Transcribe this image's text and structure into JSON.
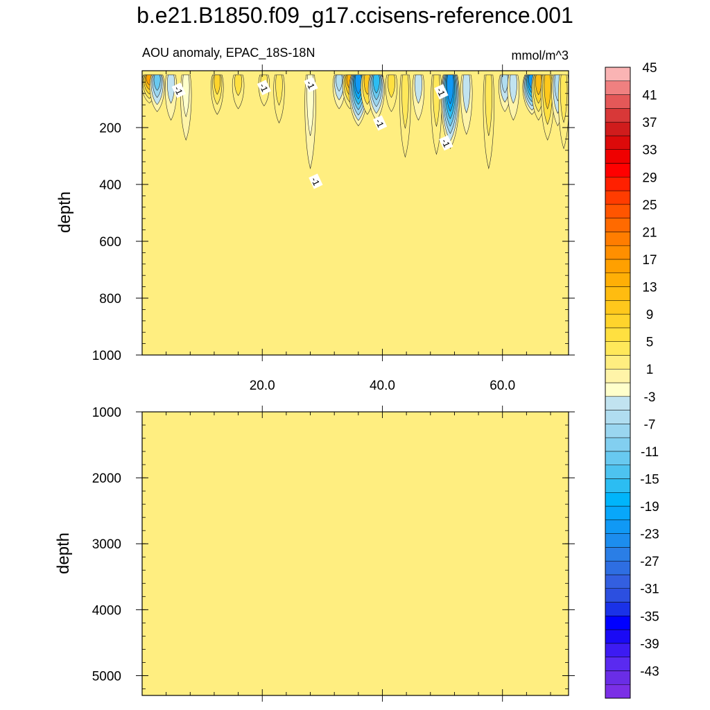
{
  "title": "b.e21.B1850.f09_g17.ccisens-reference.001",
  "chart_data": {
    "type": "contour",
    "left_string": "AOU anomaly, EPAC_18S-18N",
    "right_string": "mmol/m^3",
    "xlabel": "",
    "x_range": [
      0,
      71
    ],
    "x_ticks": [
      20.0,
      40.0,
      60.0
    ],
    "x_tick_labels": [
      "20.0",
      "40.0",
      "60.0"
    ],
    "panels": [
      {
        "name": "upper",
        "ylabel": "depth",
        "ylim": [
          0,
          1000
        ],
        "y_ticks": [
          200,
          400,
          600,
          800,
          1000
        ],
        "y_tick_labels": [
          "200",
          "400",
          "600",
          "800",
          "1000"
        ],
        "background_value": 1,
        "contour_labels": [
          {
            "text": "-1",
            "x": 6.0,
            "depth": 70
          },
          {
            "text": "-1",
            "x": 20.2,
            "depth": 60
          },
          {
            "text": "-1",
            "x": 28.0,
            "depth": 50
          },
          {
            "text": "-1",
            "x": 39.5,
            "depth": 185
          },
          {
            "text": "-1",
            "x": 49.7,
            "depth": 75
          },
          {
            "text": "-1",
            "x": 50.5,
            "depth": 255
          },
          {
            "text": "-1",
            "x": 28.8,
            "depth": 390
          }
        ],
        "features": [
          {
            "x": 1.2,
            "depth": 70,
            "value": 15
          },
          {
            "x": 2.5,
            "depth": 100,
            "value": -13
          },
          {
            "x": 4.8,
            "depth": 130,
            "value": -5
          },
          {
            "x": 7.3,
            "depth": 200,
            "value": -3
          },
          {
            "x": 12.5,
            "depth": 110,
            "value": 7
          },
          {
            "x": 16.0,
            "depth": 90,
            "value": 5
          },
          {
            "x": 20.3,
            "depth": 80,
            "value": 3
          },
          {
            "x": 22.8,
            "depth": 140,
            "value": 3
          },
          {
            "x": 28.0,
            "depth": 300,
            "value": -3
          },
          {
            "x": 32.8,
            "depth": 90,
            "value": -7
          },
          {
            "x": 34.6,
            "depth": 90,
            "value": 13
          },
          {
            "x": 36.0,
            "depth": 150,
            "value": -23
          },
          {
            "x": 37.5,
            "depth": 110,
            "value": 9
          },
          {
            "x": 39.0,
            "depth": 130,
            "value": -17
          },
          {
            "x": 41.5,
            "depth": 100,
            "value": 5
          },
          {
            "x": 43.8,
            "depth": 260,
            "value": 3
          },
          {
            "x": 46.0,
            "depth": 130,
            "value": -5
          },
          {
            "x": 49.0,
            "depth": 250,
            "value": 3
          },
          {
            "x": 51.3,
            "depth": 230,
            "value": -23
          },
          {
            "x": 54.0,
            "depth": 180,
            "value": -5
          },
          {
            "x": 57.7,
            "depth": 300,
            "value": 3
          },
          {
            "x": 60.4,
            "depth": 100,
            "value": -7
          },
          {
            "x": 61.8,
            "depth": 130,
            "value": -5
          },
          {
            "x": 64.9,
            "depth": 110,
            "value": -23
          },
          {
            "x": 66.0,
            "depth": 130,
            "value": 11
          },
          {
            "x": 67.5,
            "depth": 200,
            "value": 9
          },
          {
            "x": 69.2,
            "depth": 150,
            "value": -7
          },
          {
            "x": 70.2,
            "depth": 230,
            "value": 3
          }
        ]
      },
      {
        "name": "lower",
        "ylabel": "depth",
        "ylim": [
          1000,
          5300
        ],
        "y_ticks": [
          1000,
          2000,
          3000,
          4000,
          5000
        ],
        "y_tick_labels": [
          "1000",
          "2000",
          "3000",
          "4000",
          "5000"
        ],
        "background_value": 1
      }
    ],
    "colorbar": {
      "levels": [
        -45,
        -43,
        -41,
        -39,
        -37,
        -35,
        -33,
        -31,
        -29,
        -27,
        -25,
        -23,
        -21,
        -19,
        -17,
        -15,
        -13,
        -11,
        -9,
        -7,
        -5,
        -3,
        -1,
        1,
        3,
        5,
        7,
        9,
        11,
        13,
        15,
        17,
        19,
        21,
        23,
        25,
        27,
        29,
        31,
        33,
        35,
        37,
        39,
        41,
        43,
        45
      ],
      "labels": [
        "45",
        "41",
        "37",
        "33",
        "29",
        "25",
        "21",
        "17",
        "13",
        "9",
        "5",
        "1",
        "-3",
        "-7",
        "-11",
        "-15",
        "-19",
        "-23",
        "-27",
        "-31",
        "-35",
        "-39",
        "-43"
      ],
      "colors": [
        "#7b2fe6",
        "#6a2de6",
        "#5a2af0",
        "#3d1bf2",
        "#1a0af5",
        "#0000ff",
        "#1a32e8",
        "#2c4fe0",
        "#335fe0",
        "#2e6ee2",
        "#2a7ee6",
        "#1c8dee",
        "#1099f5",
        "#08a7fa",
        "#00b5fb",
        "#2cbdf2",
        "#4dc3f0",
        "#68c9f0",
        "#82cff0",
        "#9ad6f0",
        "#b0ddf0",
        "#c1e3f0",
        "#ffffcb",
        "#fff4a8",
        "#ffee80",
        "#ffe85a",
        "#ffe040",
        "#ffd42c",
        "#ffc81c",
        "#ffbc10",
        "#ffaf06",
        "#ffa000",
        "#ff8f00",
        "#ff7d00",
        "#ff6a00",
        "#ff5500",
        "#ff3c00",
        "#ff2000",
        "#ff0000",
        "#ef0000",
        "#dc0a0a",
        "#d01c1c",
        "#d83838",
        "#e45858",
        "#f08080",
        "#fab4b4"
      ]
    }
  }
}
